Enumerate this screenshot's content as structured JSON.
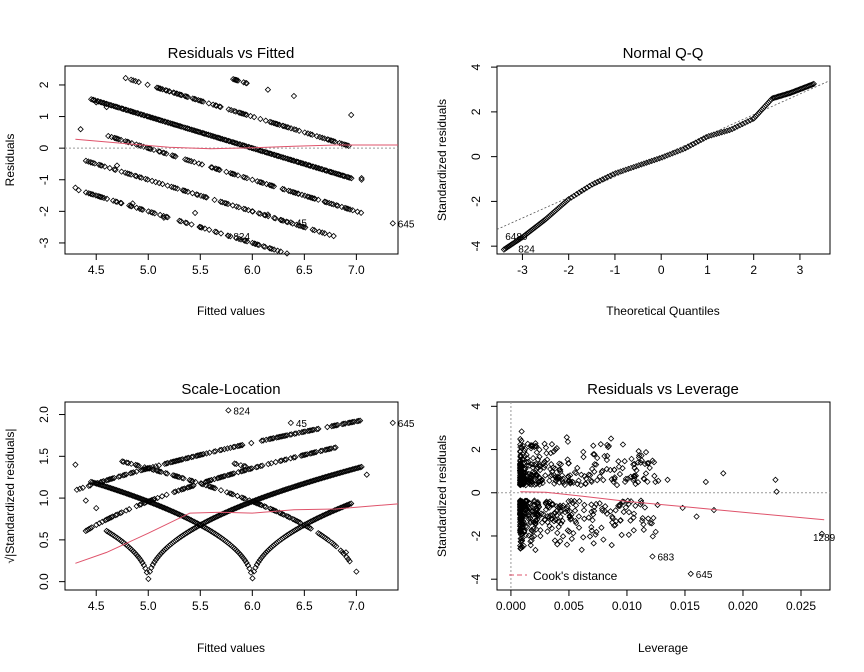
{
  "chart_data": [
    {
      "type": "scatter",
      "title": "Residuals vs Fitted",
      "xlabel": "Fitted values",
      "ylabel": "Residuals",
      "xlim": [
        4.2,
        7.4
      ],
      "ylim": [
        -3.35,
        2.6
      ],
      "xticks": [
        "4.5",
        "5.0",
        "5.5",
        "6.0",
        "6.5",
        "7.0"
      ],
      "xtick_values": [
        4.5,
        5.0,
        5.5,
        6.0,
        6.5,
        7.0
      ],
      "yticks": [
        "-3",
        "-2",
        "-1",
        "0",
        "1",
        "2"
      ],
      "ytick_values": [
        -3,
        -2,
        -1,
        0,
        1,
        2
      ],
      "bands": [
        {
          "offset": 8,
          "from": 5.8,
          "to": 5.95
        },
        {
          "offset": 7,
          "from": 4.75,
          "to": 6.95
        },
        {
          "offset": 6,
          "from": 4.45,
          "to": 6.95
        },
        {
          "offset": 5,
          "from": 4.6,
          "to": 7.05
        },
        {
          "offset": 4,
          "from": 4.4,
          "to": 6.8
        },
        {
          "offset": 3,
          "from": 4.3,
          "to": 7.05
        }
      ],
      "smooth": {
        "x": [
          4.3,
          4.8,
          5.2,
          5.6,
          6.0,
          6.4,
          6.8,
          7.1,
          7.4
        ],
        "y": [
          0.28,
          0.14,
          0.03,
          -0.02,
          0.01,
          0.06,
          0.1,
          0.1,
          0.1
        ]
      },
      "reference_line": 0,
      "annotations": [
        {
          "label": "824",
          "x": 5.77,
          "y": -2.78
        },
        {
          "label": "45",
          "x": 6.37,
          "y": -2.35
        },
        {
          "label": "645",
          "x": 7.35,
          "y": -2.38
        }
      ]
    },
    {
      "type": "scatter",
      "title": "Normal Q-Q",
      "xlabel": "Theoretical Quantiles",
      "ylabel": "Standardized residuals",
      "xlim": [
        -3.55,
        3.65
      ],
      "ylim": [
        -4.35,
        4.05
      ],
      "xticks": [
        "-3",
        "-2",
        "-1",
        "0",
        "1",
        "2",
        "3"
      ],
      "xtick_values": [
        -3,
        -2,
        -1,
        0,
        1,
        2,
        3
      ],
      "yticks": [
        "-4",
        "-2",
        "0",
        "2",
        "4"
      ],
      "ytick_values": [
        -4,
        -2,
        0,
        2,
        4
      ],
      "curve": {
        "x": [
          -3.4,
          -3.0,
          -2.5,
          -2.0,
          -1.5,
          -1.0,
          -0.5,
          0,
          0.5,
          1.0,
          1.5,
          2.0,
          2.4,
          2.8,
          3.3
        ],
        "y": [
          -4.15,
          -3.6,
          -2.8,
          -1.9,
          -1.25,
          -0.75,
          -0.4,
          -0.05,
          0.35,
          0.9,
          1.2,
          1.7,
          2.6,
          2.85,
          3.25
        ]
      },
      "reference_line": {
        "x": [
          -3.55,
          3.65
        ],
        "y": [
          -3.25,
          3.4
        ]
      },
      "annotations": [
        {
          "label": "6480",
          "x": -3.48,
          "y": -3.55
        },
        {
          "label": "824",
          "x": -3.2,
          "y": -4.1
        }
      ]
    },
    {
      "type": "scatter",
      "title": "Scale-Location",
      "xlabel": "Fitted values",
      "ylabel": "√|Standardized residuals|",
      "xlim": [
        4.2,
        7.4
      ],
      "ylim": [
        -0.1,
        2.15
      ],
      "xticks": [
        "4.5",
        "5.0",
        "5.5",
        "6.0",
        "6.5",
        "7.0"
      ],
      "xtick_values": [
        4.5,
        5.0,
        5.5,
        6.0,
        6.5,
        7.0
      ],
      "yticks": [
        "0.0",
        "0.5",
        "1.0",
        "1.5",
        "2.0"
      ],
      "ytick_values": [
        0.0,
        0.5,
        1.0,
        1.5,
        2.0
      ],
      "smooth": {
        "x": [
          4.3,
          4.6,
          5.0,
          5.4,
          5.7,
          6.0,
          6.4,
          6.8,
          7.1,
          7.4
        ],
        "y": [
          0.22,
          0.35,
          0.58,
          0.82,
          0.83,
          0.82,
          0.86,
          0.87,
          0.9,
          0.93
        ]
      },
      "annotations": [
        {
          "label": "824",
          "x": 5.77,
          "y": 2.05
        },
        {
          "label": "45",
          "x": 6.37,
          "y": 1.9
        },
        {
          "label": "645",
          "x": 7.35,
          "y": 1.9
        }
      ]
    },
    {
      "type": "scatter",
      "title": "Residuals vs Leverage",
      "xlabel": "Leverage",
      "ylabel": "Standardized residuals",
      "xlim": [
        -0.0012,
        0.0275
      ],
      "ylim": [
        -4.5,
        4.2
      ],
      "xticks": [
        "0.000",
        "0.005",
        "0.010",
        "0.015",
        "0.020",
        "0.025"
      ],
      "xtick_values": [
        0.0,
        0.005,
        0.01,
        0.015,
        0.02,
        0.025
      ],
      "yticks": [
        "-4",
        "-2",
        "0",
        "2",
        "4"
      ],
      "ytick_values": [
        -4,
        -2,
        0,
        2,
        4
      ],
      "smooth": {
        "x": [
          0.0008,
          0.003,
          0.006,
          0.01,
          0.015,
          0.02,
          0.027
        ],
        "y": [
          0.05,
          0.02,
          -0.15,
          -0.4,
          -0.65,
          -0.9,
          -1.25
        ]
      },
      "annotations": [
        {
          "label": "683",
          "x": 0.0122,
          "y": -2.95
        },
        {
          "label": "645",
          "x": 0.0155,
          "y": -3.75
        },
        {
          "label": "1289",
          "x": 0.0256,
          "y": -2.05
        }
      ],
      "legend": {
        "label": "Cook's distance",
        "position": "bottom-left"
      }
    }
  ]
}
